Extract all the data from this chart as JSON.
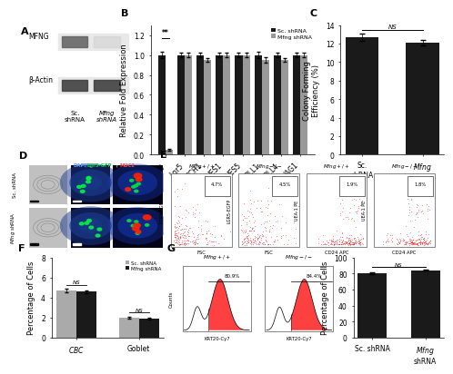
{
  "panel_B": {
    "categories": [
      "Mfng",
      "Lgr5",
      "NOTCH1",
      "HES1",
      "HES5",
      "DLL1",
      "DLL4",
      "JAG1"
    ],
    "sc_values": [
      1.0,
      1.0,
      1.0,
      1.0,
      1.0,
      1.0,
      1.0,
      1.0
    ],
    "mfng_values": [
      0.05,
      1.0,
      0.95,
      1.0,
      1.0,
      0.95,
      0.95,
      1.0
    ],
    "sc_errors": [
      0.03,
      0.02,
      0.02,
      0.02,
      0.02,
      0.03,
      0.02,
      0.02
    ],
    "mfng_errors": [
      0.01,
      0.02,
      0.02,
      0.02,
      0.02,
      0.03,
      0.02,
      0.02
    ],
    "ylabel": "Relative Fold Expression",
    "ylim": [
      0,
      1.3
    ],
    "yticks": [
      0.0,
      0.2,
      0.4,
      0.6,
      0.8,
      1.0,
      1.2
    ],
    "sc_color": "#1a1a1a",
    "mfng_color": "#999999",
    "legend_sc": "Sc. shRNA",
    "legend_mfng": "Mfng shRNA",
    "sig_label": "**"
  },
  "panel_C": {
    "categories": [
      "Sc.\nshRNA",
      "Mfng\nshRNA"
    ],
    "values": [
      12.7,
      12.1
    ],
    "errors": [
      0.4,
      0.3
    ],
    "ylabel": "Colony Forming\nEfficiency (%)",
    "ylim": [
      0,
      14
    ],
    "yticks": [
      0,
      2,
      4,
      6,
      8,
      10,
      12,
      14
    ],
    "bar_color": "#1a1a1a"
  },
  "panel_F": {
    "groups": [
      "CBC",
      "Goblet"
    ],
    "sc_values": [
      4.7,
      2.0
    ],
    "mfng_values": [
      4.6,
      1.9
    ],
    "sc_errors": [
      0.15,
      0.1
    ],
    "mfng_errors": [
      0.15,
      0.1
    ],
    "ylabel": "Percentage of Cells",
    "ylim": [
      0,
      8
    ],
    "yticks": [
      0,
      2,
      4,
      6,
      8
    ],
    "sc_color": "#aaaaaa",
    "mfng_color": "#1a1a1a",
    "legend_sc": "Sc. shRNA",
    "legend_mfng": "Mfng shRNA"
  },
  "panel_G_bar": {
    "categories": [
      "Sc. shRNA",
      "Mfng\nshRNA"
    ],
    "values": [
      80.5,
      84.2
    ],
    "errors": [
      0.8,
      0.8
    ],
    "ylabel": "Percentage of Cells",
    "ylim": [
      0,
      100
    ],
    "yticks": [
      0,
      20,
      40,
      60,
      80,
      100
    ],
    "bar_color": "#1a1a1a"
  },
  "flow_E": {
    "titles": [
      "Mfng+/+",
      "Mfng-/-",
      "Mfng+/+",
      "Mfng-/-"
    ],
    "percentages": [
      "4.7%",
      "4.5%",
      "1.9%",
      "1.8%"
    ],
    "xlabels": [
      "FSC",
      "FSC",
      "CD24 APC",
      "CD24 APC"
    ],
    "ylabels": [
      "LGR5-EGFP",
      "LGR5-EGFP",
      "UEA-1 PE",
      "UEA-1 PE"
    ]
  },
  "flow_G": {
    "titles": [
      "Mfng+/+",
      "Mfng-/-"
    ],
    "percentages": [
      "80.9%",
      "84.4%"
    ],
    "xlabel": "KRT20-Cy7",
    "ylabel": "Counts"
  },
  "background_color": "#ffffff",
  "label_fontsize": 8,
  "tick_fontsize": 5.5,
  "axis_label_fontsize": 6
}
